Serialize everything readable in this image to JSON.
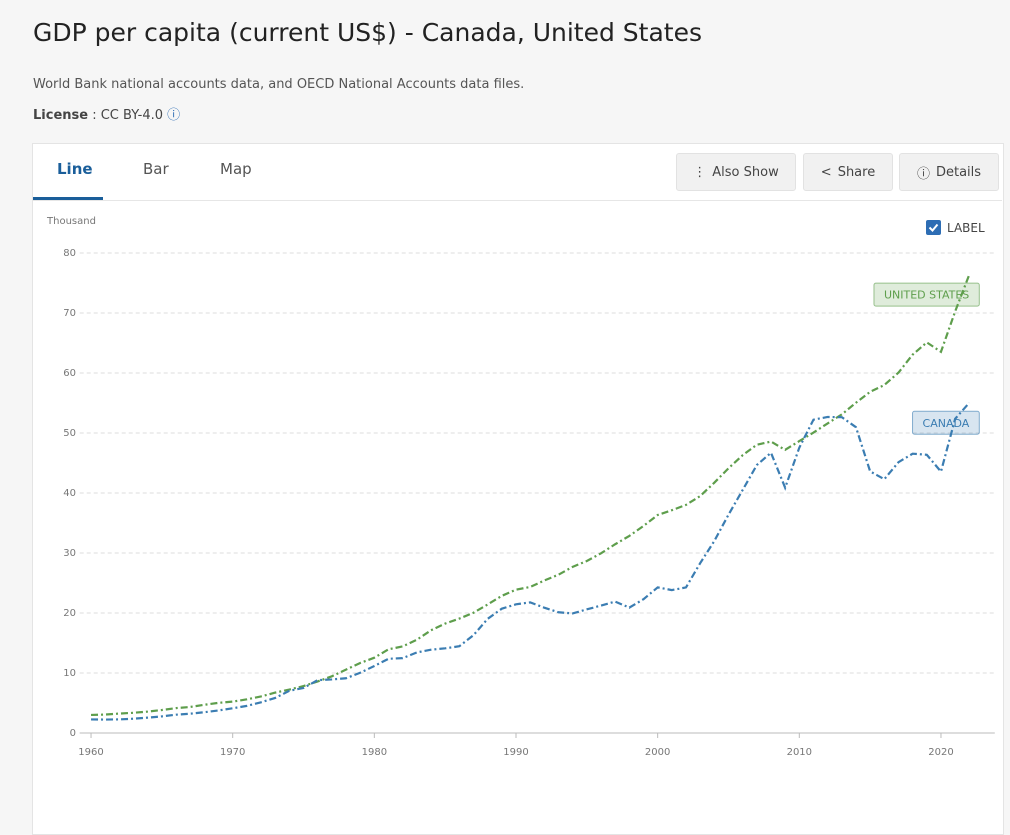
{
  "header": {
    "title": "GDP per capita (current US$) - Canada, United States",
    "source": "World Bank national accounts data, and OECD National Accounts data files.",
    "license_label": "License",
    "license_value": ": CC BY-4.0"
  },
  "tabs": [
    "Line",
    "Bar",
    "Map"
  ],
  "buttons": [
    "Also Show",
    "Share",
    "Details"
  ],
  "label_toggle": "LABEL",
  "chart_data": {
    "type": "line",
    "ylabel": "Thousand",
    "x": [
      1960,
      1961,
      1962,
      1963,
      1964,
      1965,
      1966,
      1967,
      1968,
      1969,
      1970,
      1971,
      1972,
      1973,
      1974,
      1975,
      1976,
      1977,
      1978,
      1979,
      1980,
      1981,
      1982,
      1983,
      1984,
      1985,
      1986,
      1987,
      1988,
      1989,
      1990,
      1991,
      1992,
      1993,
      1994,
      1995,
      1996,
      1997,
      1998,
      1999,
      2000,
      2001,
      2002,
      2003,
      2004,
      2005,
      2006,
      2007,
      2008,
      2009,
      2010,
      2011,
      2012,
      2013,
      2014,
      2015,
      2016,
      2017,
      2018,
      2019,
      2020,
      2021,
      2022
    ],
    "series": [
      {
        "name": "UNITED STATES",
        "color": "#5e9e4c",
        "values": [
          3.01,
          3.07,
          3.24,
          3.37,
          3.57,
          3.83,
          4.15,
          4.34,
          4.7,
          5.03,
          5.23,
          5.61,
          6.09,
          6.73,
          7.24,
          7.82,
          8.6,
          9.45,
          10.56,
          11.67,
          12.55,
          13.95,
          14.43,
          15.54,
          17.12,
          18.24,
          19.07,
          20.04,
          21.42,
          22.86,
          23.89,
          24.34,
          25.42,
          26.39,
          27.69,
          28.67,
          29.95,
          31.46,
          32.85,
          34.51,
          36.33,
          37.13,
          38.02,
          39.49,
          41.72,
          44.12,
          46.3,
          48.05,
          48.57,
          47.19,
          48.65,
          50.07,
          51.6,
          53.1,
          55.05,
          56.86,
          58.0,
          60.06,
          63.06,
          65.1,
          63.53,
          70.25,
          76.4
        ]
      },
      {
        "name": "CANADA",
        "color": "#3b7db2",
        "values": [
          2.26,
          2.24,
          2.27,
          2.38,
          2.56,
          2.77,
          3.05,
          3.22,
          3.46,
          3.76,
          4.12,
          4.52,
          5.12,
          5.84,
          7.03,
          7.51,
          8.81,
          8.93,
          9.12,
          10.04,
          11.17,
          12.37,
          12.48,
          13.43,
          13.88,
          14.11,
          14.46,
          16.31,
          19.03,
          20.72,
          21.45,
          21.77,
          20.88,
          20.12,
          19.93,
          20.61,
          21.23,
          21.9,
          20.9,
          22.3,
          24.27,
          23.82,
          24.26,
          28.3,
          32.0,
          36.38,
          40.5,
          44.66,
          46.71,
          40.88,
          47.56,
          52.22,
          52.67,
          52.64,
          50.96,
          43.6,
          42.3,
          45.13,
          46.55,
          46.37,
          43.56,
          52.36,
          55.04
        ]
      }
    ],
    "xlim": [
      1959.2,
      2023.8
    ],
    "xticks": [
      1960,
      1970,
      1980,
      1990,
      2000,
      2010,
      2020
    ],
    "ylim": [
      0,
      80
    ],
    "yticks": [
      0,
      10,
      20,
      30,
      40,
      50,
      60,
      70,
      80
    ],
    "grid": true
  }
}
